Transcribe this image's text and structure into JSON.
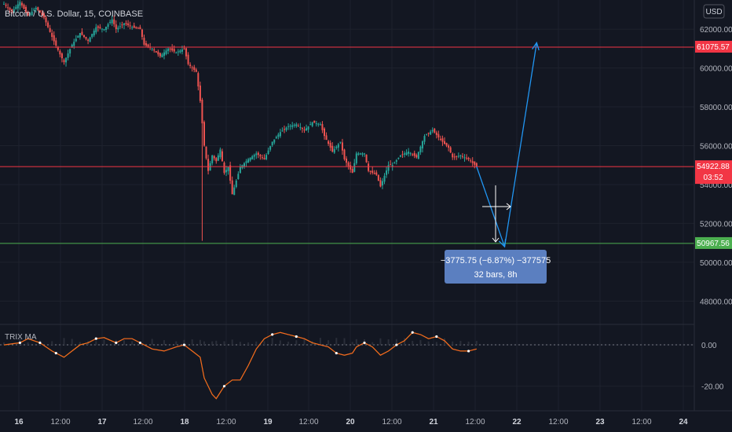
{
  "header": {
    "symbol_title": "Bitcoin / U.S. Dollar, 15, COINBASE",
    "currency_badge": "USD"
  },
  "indicator": {
    "name": "TRIX MA",
    "y_ticks": [
      "0.00",
      "-20.00"
    ]
  },
  "chart_data": {
    "type": "candlestick",
    "title": "Bitcoin / U.S. Dollar, 15, COINBASE",
    "currency": "USD",
    "y_axis": {
      "ticks": [
        62000,
        60000,
        58000,
        56000,
        54000,
        52000,
        50000,
        48000
      ],
      "tick_labels": [
        "62000.00",
        "60000.00",
        "58000.00",
        "56000.00",
        "54000.00",
        "52000.00",
        "50000.00",
        "48000.00"
      ],
      "range": [
        46800,
        63500
      ]
    },
    "x_axis": {
      "tick_labels": [
        "16",
        "12:00",
        "17",
        "12:00",
        "18",
        "12:00",
        "19",
        "12:00",
        "20",
        "12:00",
        "21",
        "12:00",
        "22",
        "12:00",
        "23",
        "12:00",
        "24"
      ]
    },
    "price_path": [
      [
        0,
        63300
      ],
      [
        2,
        62900
      ],
      [
        4,
        63400
      ],
      [
        6,
        62700
      ],
      [
        8,
        63100
      ],
      [
        10,
        62600
      ],
      [
        12,
        61600
      ],
      [
        14,
        60700
      ],
      [
        15,
        60300
      ],
      [
        17,
        61200
      ],
      [
        19,
        61800
      ],
      [
        21,
        61400
      ],
      [
        23,
        62100
      ],
      [
        25,
        62000
      ],
      [
        27,
        62500
      ],
      [
        28,
        62000
      ],
      [
        30,
        62300
      ],
      [
        32,
        62100
      ],
      [
        34,
        62000
      ],
      [
        35,
        61200
      ],
      [
        37,
        61000
      ],
      [
        39,
        60600
      ],
      [
        41,
        61000
      ],
      [
        43,
        60800
      ],
      [
        45,
        61000
      ],
      [
        46,
        60200
      ],
      [
        48,
        59800
      ],
      [
        49,
        58300
      ],
      [
        50,
        56000
      ],
      [
        51,
        54700
      ],
      [
        52,
        55500
      ],
      [
        53,
        55200
      ],
      [
        54,
        55800
      ],
      [
        55,
        54600
      ],
      [
        56,
        54900
      ],
      [
        57,
        53500
      ],
      [
        59,
        54900
      ],
      [
        61,
        55300
      ],
      [
        63,
        55600
      ],
      [
        65,
        55300
      ],
      [
        67,
        56200
      ],
      [
        69,
        56700
      ],
      [
        71,
        57000
      ],
      [
        73,
        57100
      ],
      [
        75,
        56800
      ],
      [
        77,
        57200
      ],
      [
        79,
        57100
      ],
      [
        80,
        56500
      ],
      [
        82,
        55700
      ],
      [
        84,
        56200
      ],
      [
        85,
        55300
      ],
      [
        87,
        54600
      ],
      [
        88,
        55600
      ],
      [
        90,
        55600
      ],
      [
        91,
        54700
      ],
      [
        93,
        54500
      ],
      [
        94,
        53900
      ],
      [
        96,
        55000
      ],
      [
        97,
        55000
      ],
      [
        99,
        55500
      ],
      [
        101,
        55700
      ],
      [
        103,
        55400
      ],
      [
        105,
        56500
      ],
      [
        107,
        56800
      ],
      [
        109,
        56300
      ],
      [
        111,
        55900
      ],
      [
        112,
        55400
      ],
      [
        114,
        55500
      ],
      [
        116,
        55300
      ],
      [
        118,
        54922.88
      ]
    ],
    "horizontal_levels": [
      {
        "price": 61075.57,
        "label": "61075.57",
        "color": "#f23645"
      },
      {
        "price": 54922.88,
        "label": "54922.88",
        "sublabel": "03:52",
        "color": "#f23645"
      },
      {
        "price": 50967.56,
        "label": "50967.56",
        "color": "#4caf50"
      }
    ],
    "measure_box": {
      "line1": "−3775.75 (−6.87%) −377575",
      "line2": "32 bars, 8h"
    },
    "projection_path": [
      [
        118,
        54922.88
      ],
      [
        125,
        50800
      ],
      [
        133,
        61300
      ]
    ],
    "trix": {
      "range": [
        -30,
        8
      ],
      "values": [
        [
          0,
          0
        ],
        [
          4,
          1
        ],
        [
          6,
          3
        ],
        [
          9,
          1
        ],
        [
          12,
          -3
        ],
        [
          15,
          -6
        ],
        [
          17,
          -3
        ],
        [
          19,
          0
        ],
        [
          21,
          1
        ],
        [
          23,
          3
        ],
        [
          25,
          3.5
        ],
        [
          28,
          1
        ],
        [
          30,
          3
        ],
        [
          32,
          3
        ],
        [
          34,
          1
        ],
        [
          37,
          -2
        ],
        [
          40,
          -3
        ],
        [
          43,
          -1
        ],
        [
          45,
          0
        ],
        [
          47,
          -3
        ],
        [
          49,
          -6
        ],
        [
          50,
          -16
        ],
        [
          52,
          -24
        ],
        [
          53,
          -26
        ],
        [
          55,
          -20
        ],
        [
          57,
          -17
        ],
        [
          59,
          -17
        ],
        [
          61,
          -10
        ],
        [
          63,
          -2
        ],
        [
          65,
          3
        ],
        [
          67,
          5
        ],
        [
          69,
          6
        ],
        [
          71,
          5
        ],
        [
          73,
          4
        ],
        [
          75,
          3
        ],
        [
          77,
          1
        ],
        [
          79,
          0
        ],
        [
          81,
          -1
        ],
        [
          83,
          -4
        ],
        [
          85,
          -5
        ],
        [
          87,
          -4
        ],
        [
          88,
          -1
        ],
        [
          90,
          1
        ],
        [
          92,
          -1
        ],
        [
          94,
          -5
        ],
        [
          96,
          -3
        ],
        [
          98,
          0
        ],
        [
          100,
          2
        ],
        [
          102,
          6
        ],
        [
          104,
          5
        ],
        [
          106,
          3
        ],
        [
          108,
          4
        ],
        [
          110,
          2
        ],
        [
          112,
          -2
        ],
        [
          114,
          -3
        ],
        [
          116,
          -3
        ],
        [
          118,
          -2
        ]
      ],
      "ticks": [
        0,
        -20
      ]
    }
  }
}
